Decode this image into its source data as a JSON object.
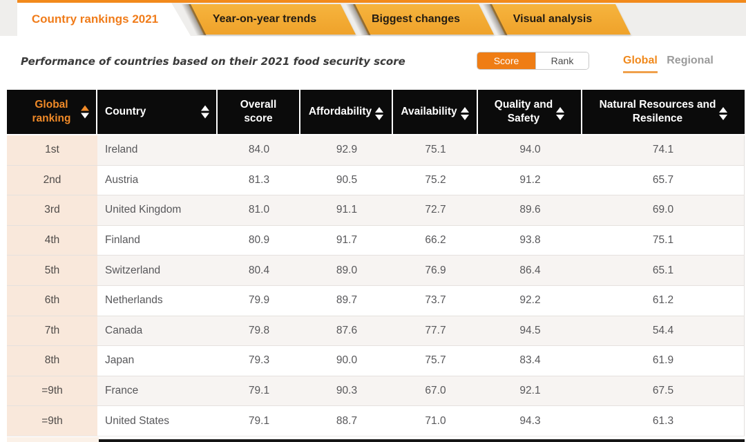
{
  "accent": {
    "orange": "#f07c1a",
    "amber": "#f3ab33",
    "header_black": "#0b0b0b",
    "rank_peach": "#f9e8db"
  },
  "tabs": [
    {
      "label": "Country rankings 2021",
      "active": true
    },
    {
      "label": "Year-on-year trends",
      "active": false
    },
    {
      "label": "Biggest changes",
      "active": false
    },
    {
      "label": "Visual analysis",
      "active": false
    }
  ],
  "subheader": {
    "title": "Performance of countries based on their 2021 food security score",
    "toggle": {
      "score": "Score",
      "rank": "Rank",
      "selected": "Score"
    },
    "scope": {
      "global": "Global",
      "regional": "Regional",
      "selected": "Global"
    }
  },
  "table": {
    "columns": [
      {
        "key": "rank",
        "label": "Global ranking",
        "lines": [
          "Global",
          "ranking"
        ],
        "sortable": true,
        "sorted": "asc"
      },
      {
        "key": "country",
        "label": "Country",
        "lines": [
          "Country"
        ],
        "sortable": true,
        "sorted": null
      },
      {
        "key": "overall",
        "label": "Overall score",
        "lines": [
          "Overall",
          "score"
        ],
        "sortable": false,
        "sorted": null
      },
      {
        "key": "affordability",
        "label": "Affordability",
        "lines": [
          "Affordability"
        ],
        "sortable": true,
        "sorted": null
      },
      {
        "key": "availability",
        "label": "Availability",
        "lines": [
          "Availability"
        ],
        "sortable": true,
        "sorted": null
      },
      {
        "key": "quality",
        "label": "Quality and Safety",
        "lines": [
          "Quality and",
          "Safety"
        ],
        "sortable": true,
        "sorted": null
      },
      {
        "key": "natural",
        "label": "Natural Resources and Resilence",
        "lines": [
          "Natural Resources and",
          "Resilence"
        ],
        "sortable": true,
        "sorted": null
      }
    ],
    "rows": [
      {
        "rank": "1st",
        "country": "Ireland",
        "overall": "84.0",
        "affordability": "92.9",
        "availability": "75.1",
        "quality": "94.0",
        "natural": "74.1"
      },
      {
        "rank": "2nd",
        "country": "Austria",
        "overall": "81.3",
        "affordability": "90.5",
        "availability": "75.2",
        "quality": "91.2",
        "natural": "65.7"
      },
      {
        "rank": "3rd",
        "country": "United Kingdom",
        "overall": "81.0",
        "affordability": "91.1",
        "availability": "72.7",
        "quality": "89.6",
        "natural": "69.0"
      },
      {
        "rank": "4th",
        "country": "Finland",
        "overall": "80.9",
        "affordability": "91.7",
        "availability": "66.2",
        "quality": "93.8",
        "natural": "75.1"
      },
      {
        "rank": "5th",
        "country": "Switzerland",
        "overall": "80.4",
        "affordability": "89.0",
        "availability": "76.9",
        "quality": "86.4",
        "natural": "65.1"
      },
      {
        "rank": "6th",
        "country": "Netherlands",
        "overall": "79.9",
        "affordability": "89.7",
        "availability": "73.7",
        "quality": "92.2",
        "natural": "61.2"
      },
      {
        "rank": "7th",
        "country": "Canada",
        "overall": "79.8",
        "affordability": "87.6",
        "availability": "77.7",
        "quality": "94.5",
        "natural": "54.4"
      },
      {
        "rank": "8th",
        "country": "Japan",
        "overall": "79.3",
        "affordability": "90.0",
        "availability": "75.7",
        "quality": "83.4",
        "natural": "61.9"
      },
      {
        "rank": "=9th",
        "country": "France",
        "overall": "79.1",
        "affordability": "90.3",
        "availability": "67.0",
        "quality": "92.1",
        "natural": "67.5"
      },
      {
        "rank": "=9th",
        "country": "United States",
        "overall": "79.1",
        "affordability": "88.7",
        "availability": "71.0",
        "quality": "94.3",
        "natural": "61.3"
      }
    ]
  }
}
